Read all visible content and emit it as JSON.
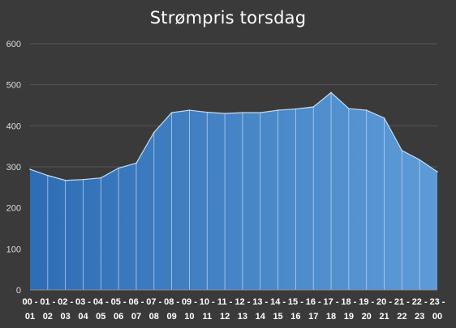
{
  "chart_data": {
    "type": "area",
    "title": "Strømpris torsdag",
    "xlabel": "",
    "ylabel": "",
    "ylim": [
      0,
      600
    ],
    "yticks": [
      0,
      100,
      200,
      300,
      400,
      500,
      600
    ],
    "grid": true,
    "legend": "none",
    "categories": [
      [
        "00 -",
        "01"
      ],
      [
        "01 -",
        "02"
      ],
      [
        "02 -",
        "03"
      ],
      [
        "03 -",
        "04"
      ],
      [
        "04 -",
        "05"
      ],
      [
        "05 -",
        "06"
      ],
      [
        "06 -",
        "07"
      ],
      [
        "07 -",
        "08"
      ],
      [
        "08 -",
        "09"
      ],
      [
        "09 -",
        "10"
      ],
      [
        "10 -",
        "11"
      ],
      [
        "11 -",
        "12"
      ],
      [
        "12 -",
        "13"
      ],
      [
        "13 -",
        "14"
      ],
      [
        "14 -",
        "15"
      ],
      [
        "15 -",
        "16"
      ],
      [
        "16 -",
        "17"
      ],
      [
        "17 -",
        "18"
      ],
      [
        "18 -",
        "19"
      ],
      [
        "19 -",
        "20"
      ],
      [
        "20 -",
        "21"
      ],
      [
        "21 -",
        "22"
      ],
      [
        "22 -",
        "23"
      ],
      [
        "23 -",
        "00"
      ]
    ],
    "values": [
      294,
      279,
      267,
      269,
      273,
      297,
      309,
      384,
      432,
      438,
      433,
      430,
      432,
      432,
      438,
      441,
      446,
      481,
      442,
      438,
      419,
      340,
      317,
      288
    ],
    "colors": {
      "background": "#3a3a3a",
      "fill_start": "#2e6db4",
      "fill_end": "#5d9bd8",
      "outline": "#c9dcef",
      "grid": "#555555"
    }
  }
}
